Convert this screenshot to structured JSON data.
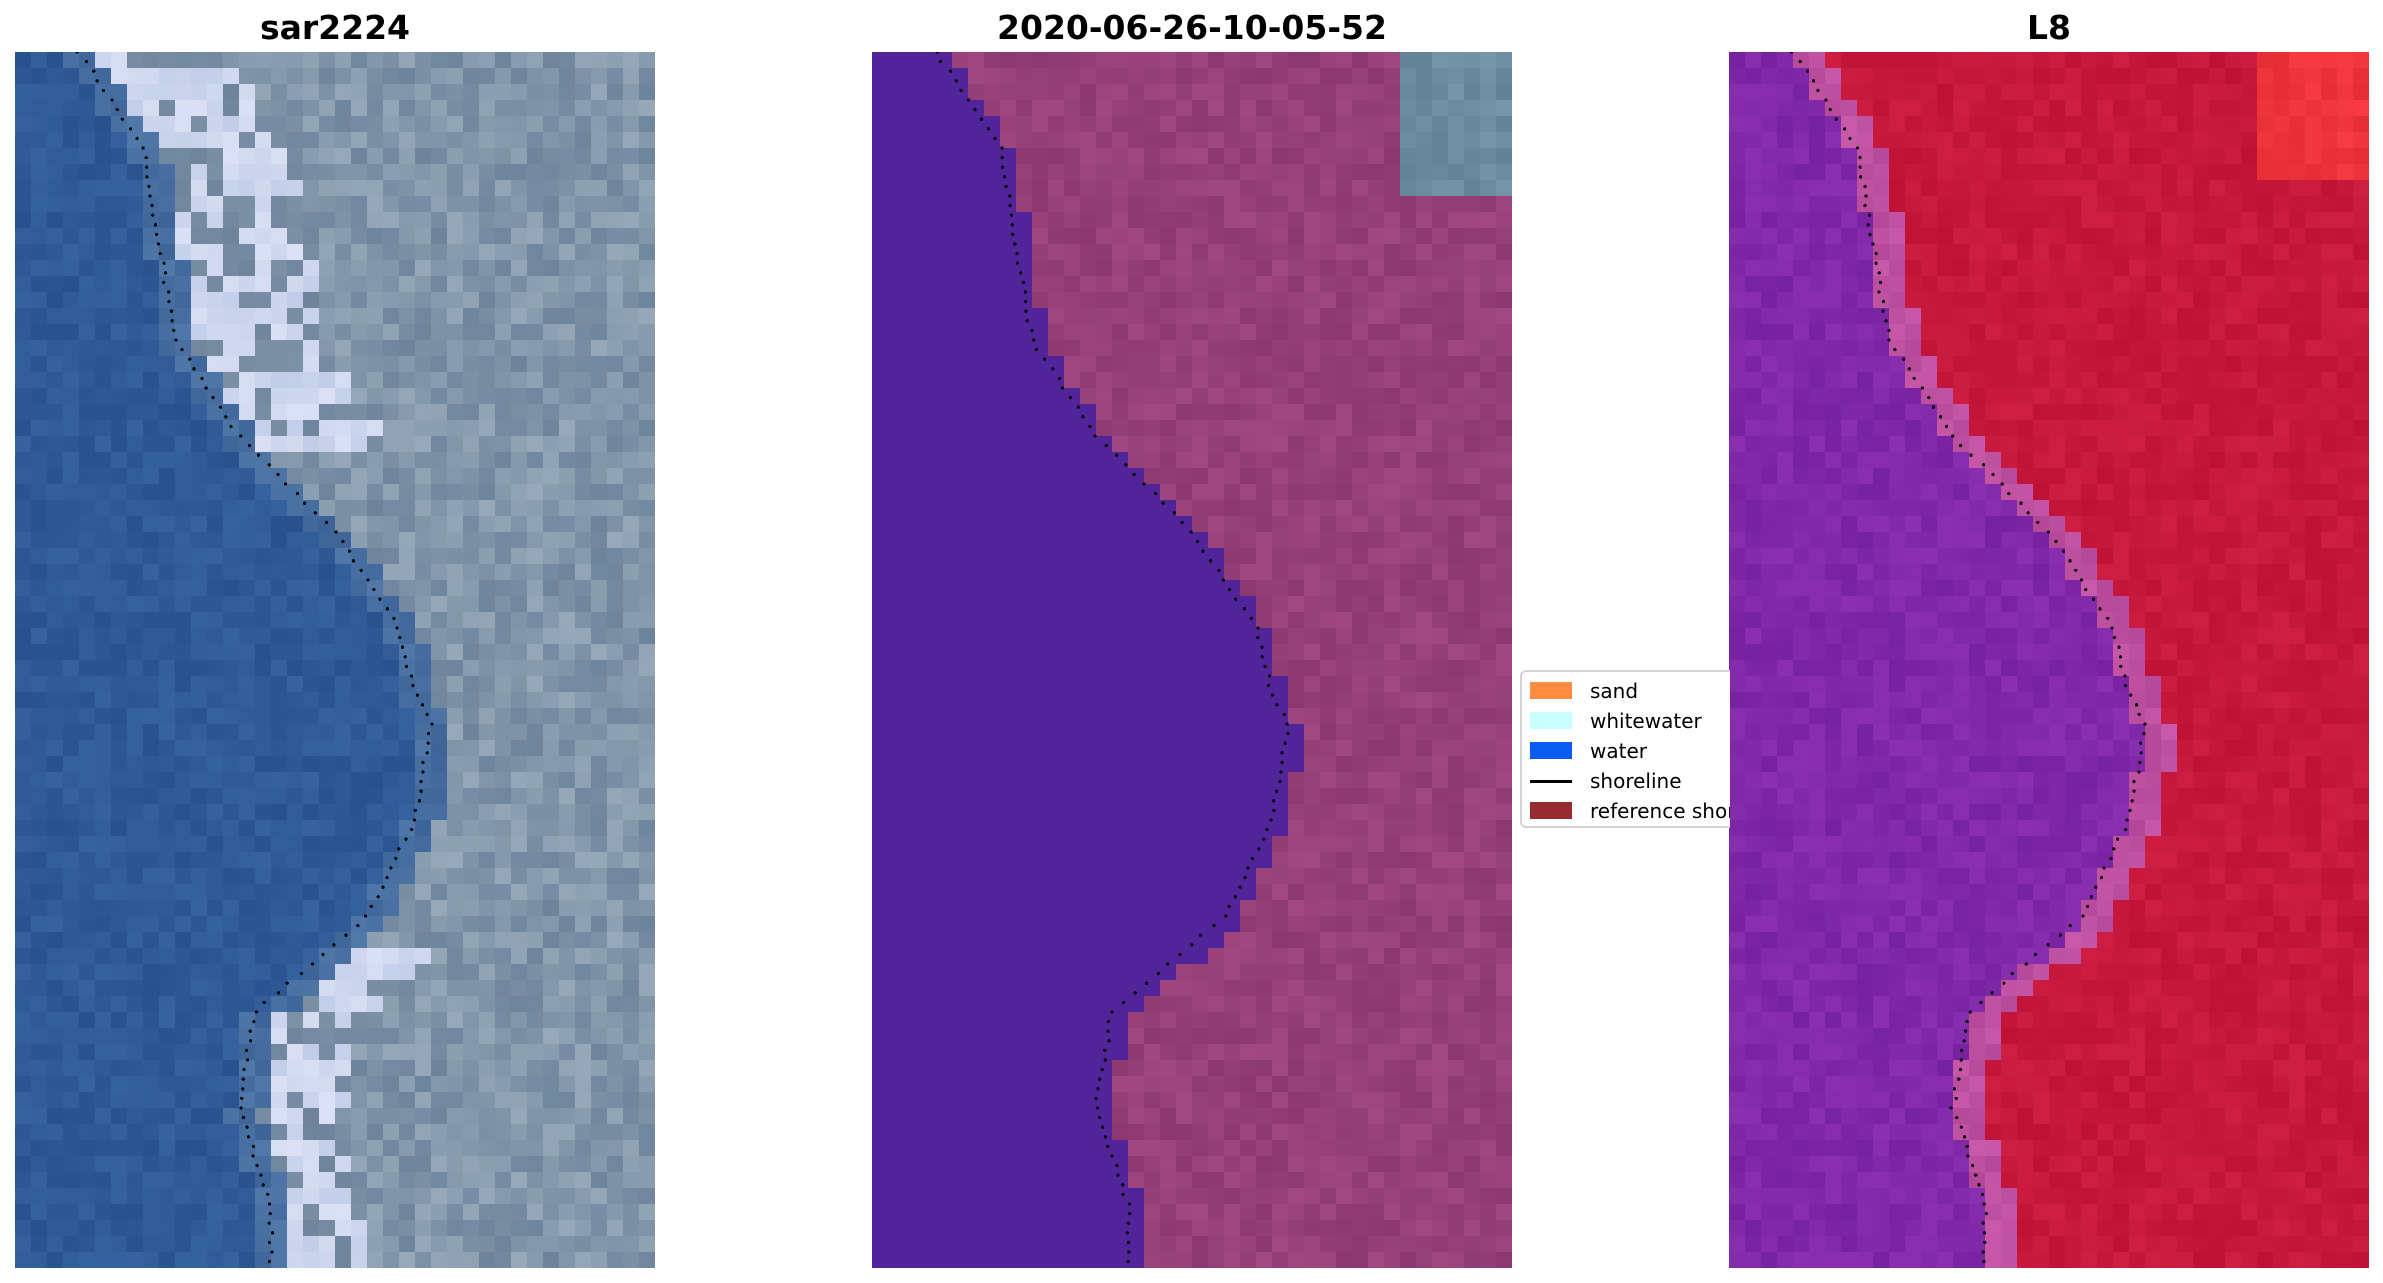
{
  "panels": [
    {
      "title": "sar2224",
      "render": "rgb"
    },
    {
      "title": "2020-06-26-10-05-52",
      "render": "classified"
    },
    {
      "title": "L8",
      "render": "index"
    }
  ],
  "legend": {
    "items": [
      {
        "label": "sand",
        "type": "patch",
        "color": "#ff8c40"
      },
      {
        "label": "whitewater",
        "type": "patch",
        "color": "#c8ffff"
      },
      {
        "label": "water",
        "type": "patch",
        "color": "#0a5cf0"
      },
      {
        "label": "shoreline",
        "type": "line",
        "color": "#000000"
      },
      {
        "label": "reference shoreline",
        "type": "patch",
        "color": "#962a30"
      }
    ]
  },
  "colors": {
    "ocean_blue": "#2f5a9a",
    "classified_water": "#52249a",
    "index_purple": "#8a3aa8",
    "index_red": "#c4173e",
    "background": "#ffffff"
  }
}
